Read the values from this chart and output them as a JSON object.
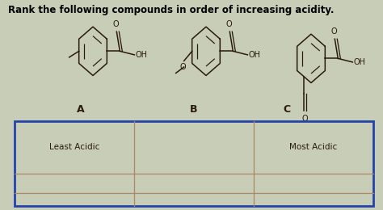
{
  "title": "Rank the following compounds in order of increasing acidity.",
  "title_fontsize": 8.5,
  "title_fontweight": "bold",
  "bg_top_color": "#cdd5c0",
  "bg_table_color": "#e8e4c8",
  "table_border_color": "#2244aa",
  "table_line_color": "#aa8866",
  "least_acidic_label": "Least Acidic",
  "most_acidic_label": "Most Acidic",
  "label_A": "A",
  "label_B": "B",
  "label_C": "C",
  "structure_color": "#2a1a08",
  "overall_bg": "#c8cdb8"
}
